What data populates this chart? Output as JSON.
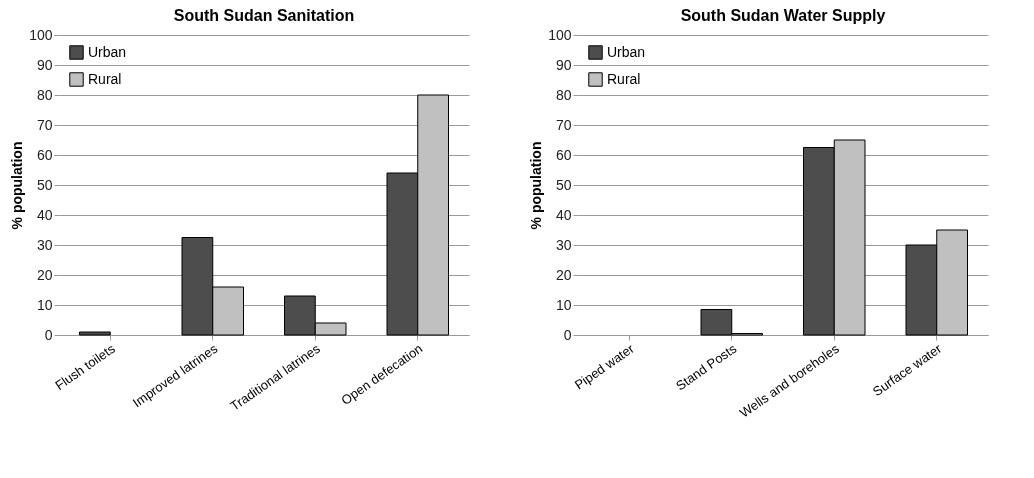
{
  "chart_data": [
    {
      "type": "bar",
      "title": "South Sudan Sanitation",
      "ylabel": "% population",
      "categories": [
        "Flush toilets",
        "Improved latrines",
        "Traditional latrines",
        "Open defecation"
      ],
      "series": [
        {
          "name": "Urban",
          "color": "#4d4d4d",
          "values": [
            1,
            32.5,
            13,
            54
          ]
        },
        {
          "name": "Rural",
          "color": "#c0c0c0",
          "values": [
            null,
            16,
            4,
            80
          ]
        }
      ],
      "ylim": [
        0,
        100
      ],
      "yticks": [
        0,
        10,
        20,
        30,
        40,
        50,
        60,
        70,
        80,
        90,
        100
      ],
      "grid": "y",
      "legend": "top left"
    },
    {
      "type": "bar",
      "title": "South Sudan Water Supply",
      "ylabel": "% population",
      "categories": [
        "Piped water",
        "Stand Posts",
        "Wells and boreholes",
        "Surface water"
      ],
      "series": [
        {
          "name": "Urban",
          "color": "#4d4d4d",
          "values": [
            null,
            8.5,
            62.5,
            30
          ]
        },
        {
          "name": "Rural",
          "color": "#c0c0c0",
          "values": [
            null,
            0.5,
            65,
            35
          ]
        }
      ],
      "ylim": [
        0,
        100
      ],
      "yticks": [
        0,
        10,
        20,
        30,
        40,
        50,
        60,
        70,
        80,
        90,
        100
      ],
      "grid": "y",
      "legend": "top left"
    }
  ]
}
